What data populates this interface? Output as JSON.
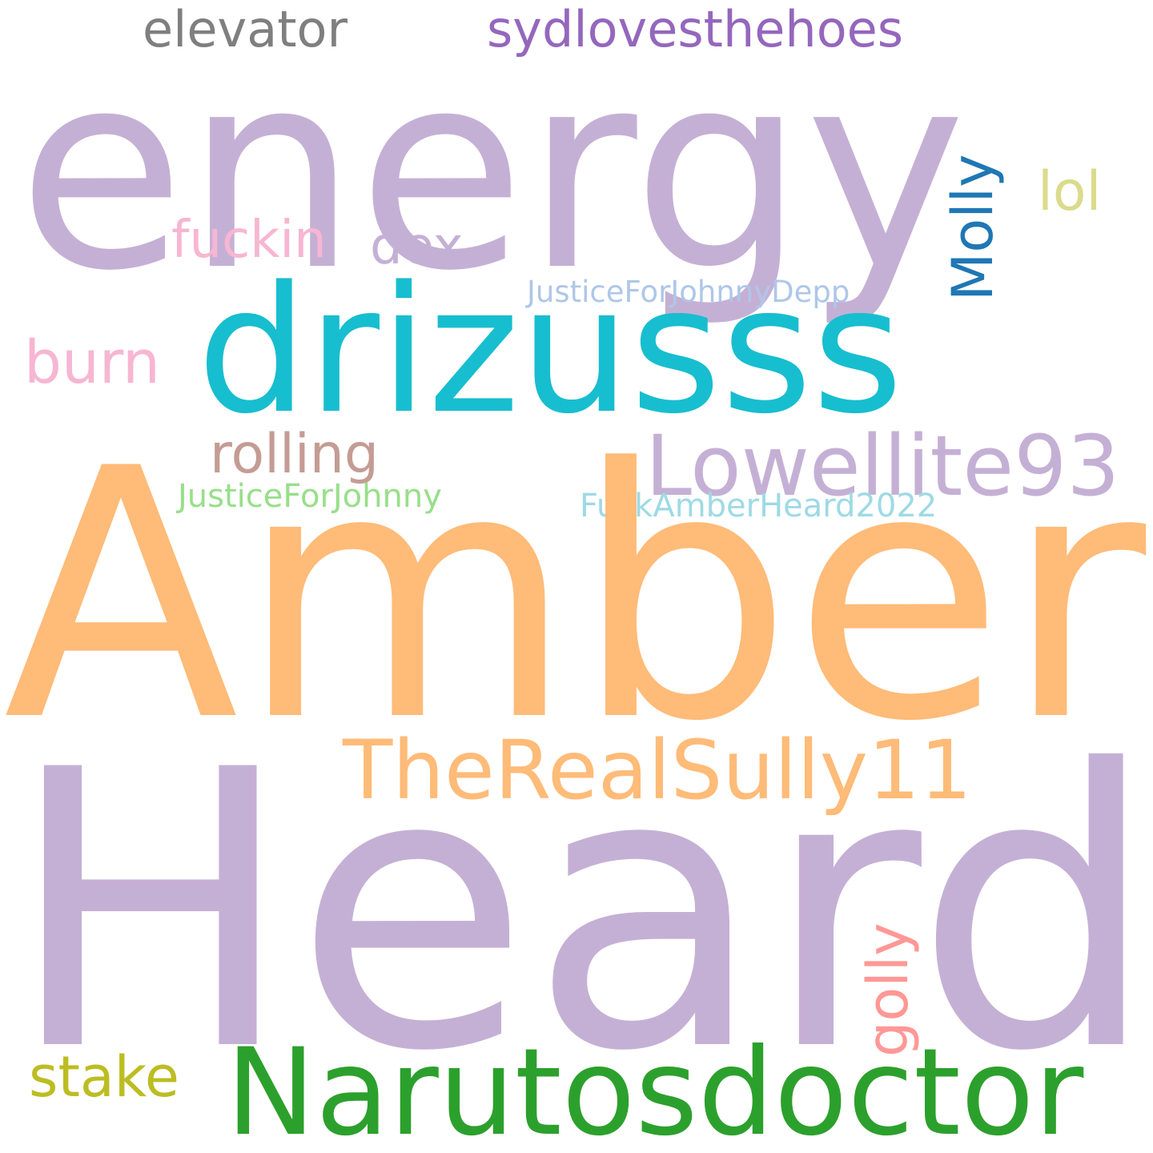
{
  "words": {
    "energy": {
      "text": "energy",
      "color": "#c5b0d5",
      "orientation": "horizontal"
    },
    "elevator": {
      "text": "elevator",
      "color": "#7f7f7f",
      "orientation": "horizontal"
    },
    "sydlovesthehoes": {
      "text": "sydlovesthehoes",
      "color": "#9467bd",
      "orientation": "horizontal"
    },
    "lol": {
      "text": "lol",
      "color": "#dbdb8d",
      "orientation": "horizontal"
    },
    "fuckin": {
      "text": "fuckin",
      "color": "#f7b6d2",
      "orientation": "horizontal"
    },
    "dex": {
      "text": "dex",
      "color": "#c5b0d5",
      "orientation": "horizontal"
    },
    "molly": {
      "text": "Molly",
      "color": "#1f77b4",
      "orientation": "vertical"
    },
    "justicefor_johnnydepp": {
      "text": "JusticeForJohnnyDepp",
      "color": "#aec7e8",
      "orientation": "horizontal"
    },
    "drizusss": {
      "text": "drizusss",
      "color": "#17becf",
      "orientation": "horizontal"
    },
    "burn": {
      "text": "burn",
      "color": "#f7b6d2",
      "orientation": "horizontal"
    },
    "rolling": {
      "text": "rolling",
      "color": "#c49c94",
      "orientation": "horizontal"
    },
    "lowellite93": {
      "text": "Lowellite93",
      "color": "#c5b0d5",
      "orientation": "horizontal"
    },
    "justiceforjohnny": {
      "text": "JusticeForJohnny",
      "color": "#98df8a",
      "orientation": "horizontal"
    },
    "fuckamberheard2022": {
      "text": "FuckAmberHeard2022",
      "color": "#9edae5",
      "orientation": "horizontal"
    },
    "amber": {
      "text": "Amber",
      "color": "#ffbb78",
      "orientation": "horizontal"
    },
    "therealsully11": {
      "text": "TheRealSully11",
      "color": "#ffbb78",
      "orientation": "horizontal"
    },
    "heard": {
      "text": "Heard",
      "color": "#c5b0d5",
      "orientation": "horizontal"
    },
    "golly": {
      "text": "golly",
      "color": "#ff9896",
      "orientation": "vertical"
    },
    "stake": {
      "text": "stake",
      "color": "#bcbd22",
      "orientation": "horizontal"
    },
    "narutosdoctor": {
      "text": "Narutosdoctor",
      "color": "#2ca02c",
      "orientation": "horizontal"
    }
  }
}
